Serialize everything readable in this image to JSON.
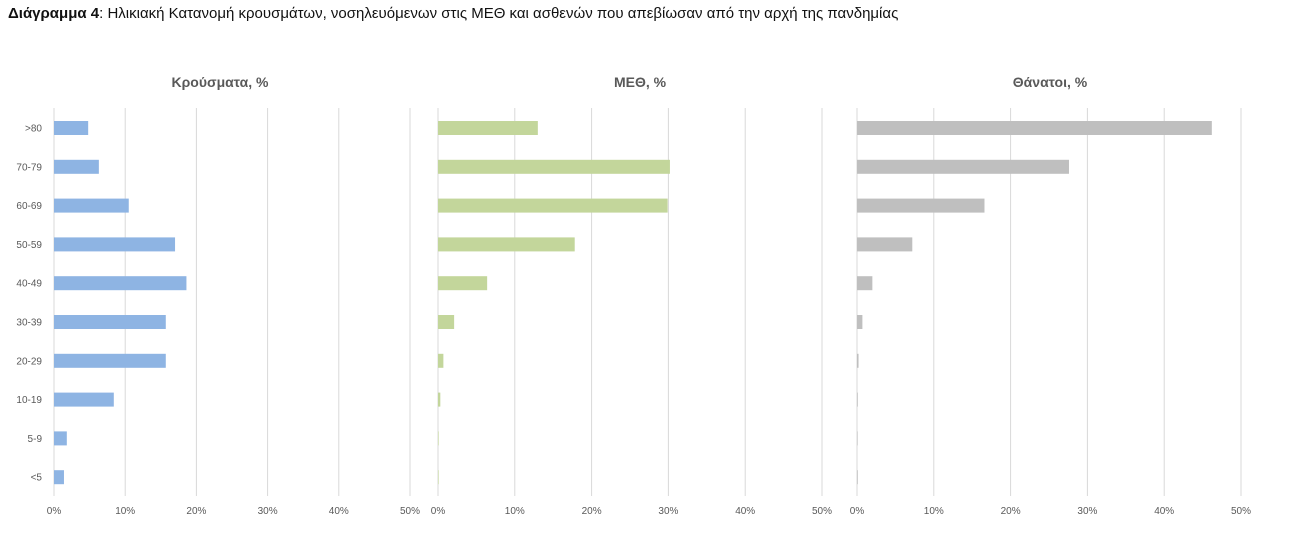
{
  "caption": {
    "label": "Διάγραμμα 4",
    "separator": ": ",
    "text": "Ηλικιακή Κατανομή κρουσμάτων, νοσηλευόμενων στις ΜΕΘ και ασθενών που απεβίωσαν από την αρχή της πανδημίας"
  },
  "colors": {
    "cases": "#8eb4e3",
    "icu": "#c3d69b",
    "deaths": "#bfbfbf",
    "grid": "#d9d9d9",
    "text": "#595959"
  },
  "chart_data": [
    {
      "type": "bar",
      "orientation": "horizontal",
      "title": "Κρούσματα, %",
      "categories": [
        ">80",
        "70-79",
        "60-69",
        "50-59",
        "40-49",
        "30-39",
        "20-29",
        "10-19",
        "5-9",
        "<5"
      ],
      "values": [
        4.8,
        6.3,
        10.5,
        17.0,
        18.6,
        15.7,
        15.7,
        8.4,
        1.8,
        1.4
      ],
      "xlim": [
        0,
        50
      ],
      "ticks": [
        "0%",
        "10%",
        "20%",
        "30%",
        "40%",
        "50%"
      ],
      "grid": true
    },
    {
      "type": "bar",
      "orientation": "horizontal",
      "title": "ΜΕΘ, %",
      "categories": [
        ">80",
        "70-79",
        "60-69",
        "50-59",
        "40-49",
        "30-39",
        "20-29",
        "10-19",
        "5-9",
        "<5"
      ],
      "values": [
        13.0,
        30.2,
        29.9,
        17.8,
        6.4,
        2.1,
        0.7,
        0.3,
        0.0,
        0.0
      ],
      "xlim": [
        0,
        50
      ],
      "ticks": [
        "0%",
        "10%",
        "20%",
        "30%",
        "40%",
        "50%"
      ],
      "grid": true
    },
    {
      "type": "bar",
      "orientation": "horizontal",
      "title": "Θάνατοι, %",
      "categories": [
        ">80",
        "70-79",
        "60-69",
        "50-59",
        "40-49",
        "30-39",
        "20-29",
        "10-19",
        "5-9",
        "<5"
      ],
      "values": [
        46.2,
        27.6,
        16.6,
        7.2,
        2.0,
        0.7,
        0.2,
        0.1,
        0.0,
        0.1
      ],
      "xlim": [
        0,
        50
      ],
      "ticks": [
        "0%",
        "10%",
        "20%",
        "30%",
        "40%",
        "50%"
      ],
      "grid": true
    }
  ]
}
